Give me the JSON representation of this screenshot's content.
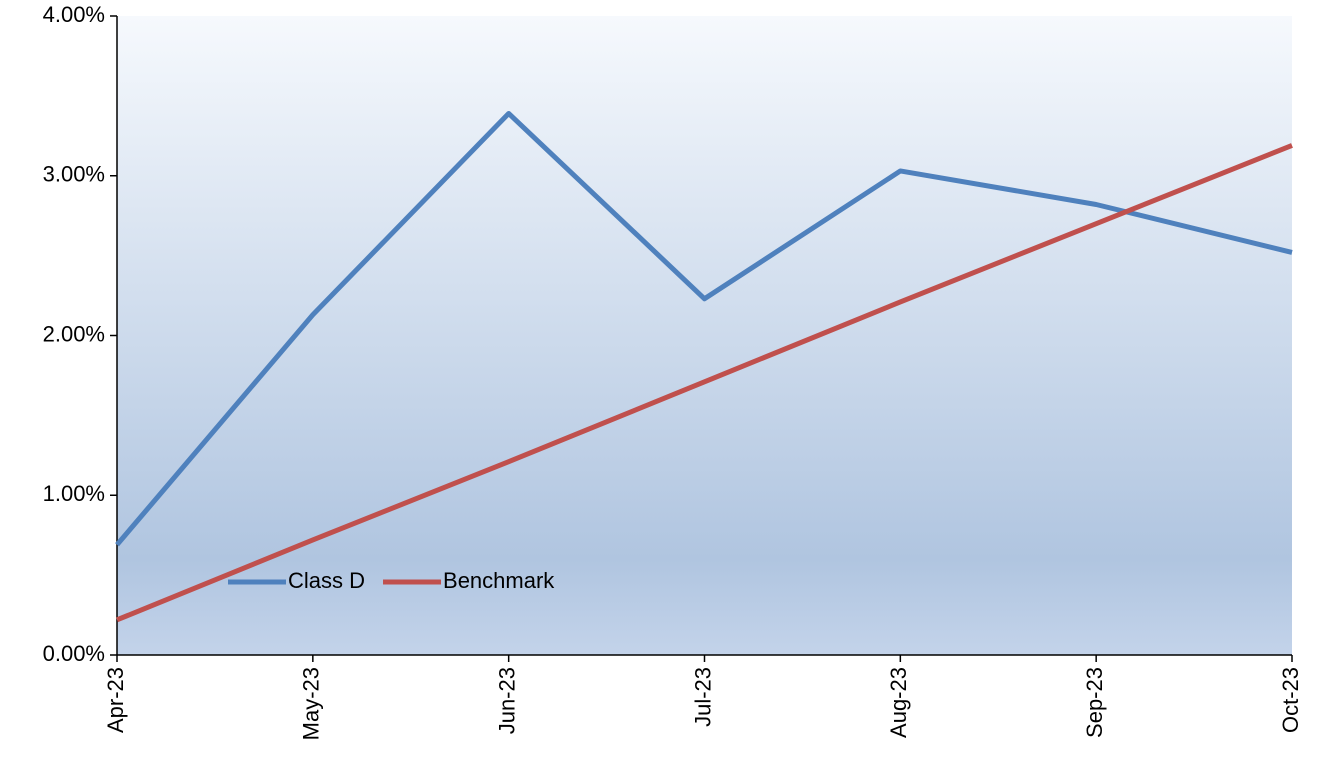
{
  "chart_data": {
    "type": "line",
    "categories": [
      "Apr-23",
      "May-23",
      "Jun-23",
      "Jul-23",
      "Aug-23",
      "Sep-23",
      "Oct-23"
    ],
    "series": [
      {
        "name": "Class D",
        "color": "#4f81bd",
        "values": [
          0.69,
          2.13,
          3.39,
          2.23,
          3.03,
          2.82,
          2.52
        ]
      },
      {
        "name": "Benchmark",
        "color": "#c0504d",
        "values": [
          0.22,
          0.72,
          1.21,
          1.71,
          2.21,
          2.7,
          3.19
        ]
      }
    ],
    "ylim": [
      0,
      4
    ],
    "yticks": [
      {
        "value": 0,
        "label": "0.00%"
      },
      {
        "value": 1,
        "label": "1.00%"
      },
      {
        "value": 2,
        "label": "2.00%"
      },
      {
        "value": 3,
        "label": "3.00%"
      },
      {
        "value": 4,
        "label": "4.00%"
      }
    ],
    "legend": "lower left"
  }
}
